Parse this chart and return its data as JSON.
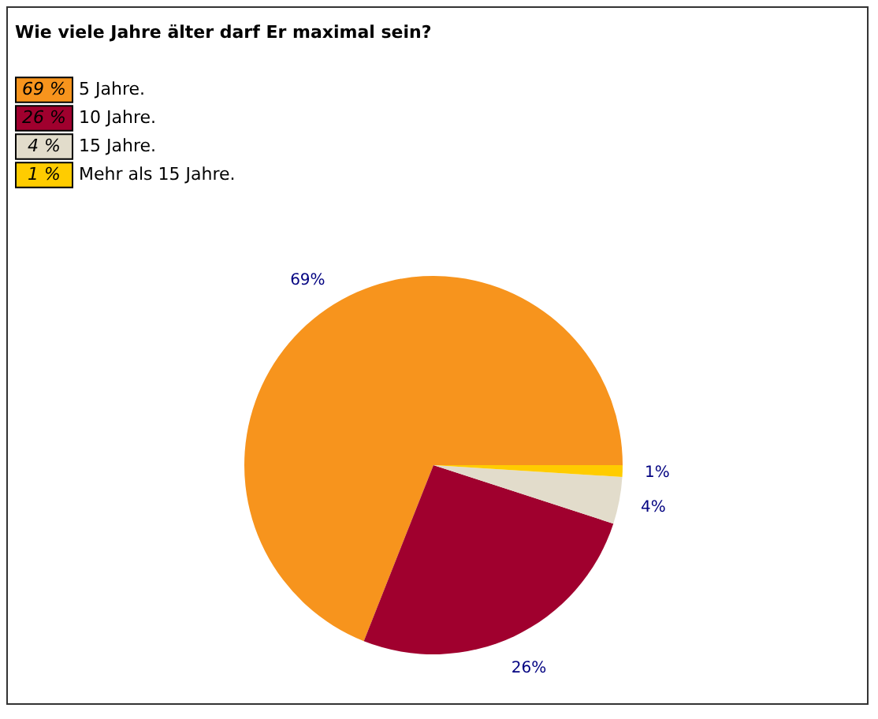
{
  "chart_data": {
    "type": "pie",
    "title": "Wie viele Jahre älter darf Er maximal sein?",
    "categories": [
      "5 Jahre.",
      "10 Jahre.",
      "15 Jahre.",
      "Mehr als 15 Jahre."
    ],
    "values": [
      69,
      26,
      4,
      1
    ],
    "colors": [
      "#f7941d",
      "#a0002e",
      "#e2dccb",
      "#ffcc00"
    ],
    "value_labels": [
      "69%",
      "26%",
      "4%",
      "1%"
    ],
    "annotations": [
      "69 %",
      "26 %",
      "4 %",
      "1 %"
    ],
    "legend": "top"
  }
}
